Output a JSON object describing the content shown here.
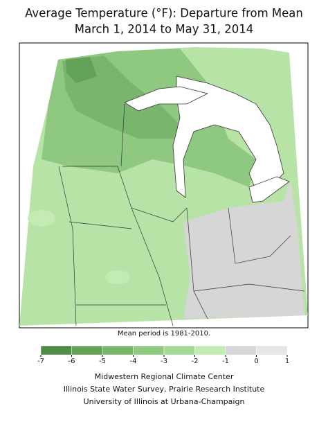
{
  "header": {
    "title": "Average Temperature (°F): Departure from Mean",
    "subtitle": "March 1, 2014 to May 31, 2014"
  },
  "map": {
    "note": "Mean period is 1981-2010."
  },
  "legend": {
    "ticks": [
      -7,
      -6,
      -5,
      -4,
      -3,
      -2,
      -1,
      0,
      1
    ],
    "colors": [
      "#4f8c45",
      "#64a158",
      "#79b56c",
      "#8fc880",
      "#a6d995",
      "#c3ebb3",
      "#d6d6d6",
      "#e6e6e6"
    ]
  },
  "footer": {
    "lines": [
      "Midwestern Regional Climate Center",
      "Illinois State Water Survey, Prairie Research Institute",
      "University of Illinois at Urbana-Champaign"
    ]
  }
}
